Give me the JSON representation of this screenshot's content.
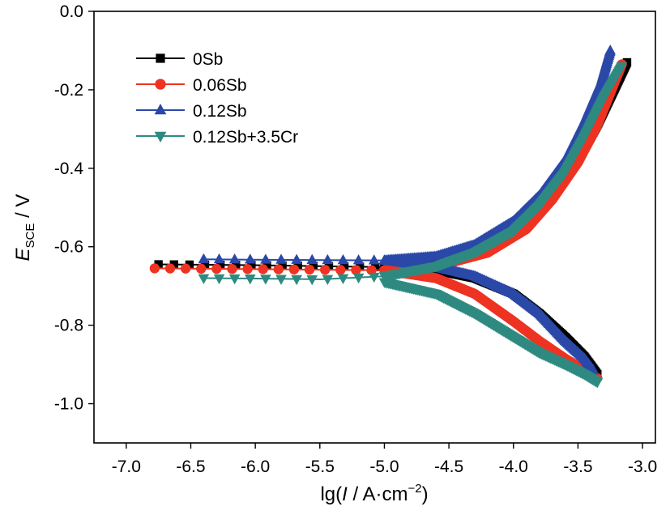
{
  "chart_data": {
    "type": "line",
    "title": "",
    "xlabel": {
      "prefix": "lg(",
      "italic": "I",
      "mid": " / A·cm",
      "sup": "−2",
      "suffix": ")"
    },
    "ylabel": {
      "italic": "E",
      "sub": "SCE",
      "suffix": " / V"
    },
    "xlim": [
      -7.25,
      -2.9
    ],
    "ylim": [
      -1.1,
      0.0
    ],
    "xticks": [
      -7.0,
      -6.5,
      -6.0,
      -5.5,
      -5.0,
      -4.5,
      -4.0,
      -3.5,
      -3.0
    ],
    "xtick_labels": [
      "-7.0",
      "-6.5",
      "-6.0",
      "-5.5",
      "-5.0",
      "-4.5",
      "-4.0",
      "-3.5",
      "-3.0"
    ],
    "yticks": [
      0.0,
      -0.2,
      -0.4,
      -0.6,
      -0.8,
      -1.0
    ],
    "ytick_labels": [
      "0.0",
      "-0.2",
      "-0.4",
      "-0.6",
      "-0.8",
      "-1.0"
    ],
    "grid": false,
    "legend_position": "top-left",
    "series": [
      {
        "name": "0Sb",
        "color": "#000000",
        "marker": "square",
        "ecorr": -0.65,
        "anodic": [
          [
            -6.75,
            -0.645
          ],
          [
            -6.0,
            -0.647
          ],
          [
            -5.0,
            -0.652
          ],
          [
            -4.6,
            -0.64
          ],
          [
            -4.2,
            -0.6
          ],
          [
            -3.9,
            -0.54
          ],
          [
            -3.7,
            -0.47
          ],
          [
            -3.5,
            -0.38
          ],
          [
            -3.35,
            -0.29
          ],
          [
            -3.22,
            -0.2
          ],
          [
            -3.12,
            -0.13
          ]
        ],
        "cathodic": [
          [
            -5.0,
            -0.652
          ],
          [
            -4.6,
            -0.66
          ],
          [
            -4.3,
            -0.68
          ],
          [
            -4.0,
            -0.72
          ],
          [
            -3.8,
            -0.77
          ],
          [
            -3.6,
            -0.83
          ],
          [
            -3.45,
            -0.88
          ],
          [
            -3.35,
            -0.925
          ]
        ]
      },
      {
        "name": "0.06Sb",
        "color": "#ee3322",
        "marker": "circle",
        "ecorr": -0.66,
        "anodic": [
          [
            -6.78,
            -0.655
          ],
          [
            -6.0,
            -0.657
          ],
          [
            -5.0,
            -0.66
          ],
          [
            -4.6,
            -0.65
          ],
          [
            -4.2,
            -0.615
          ],
          [
            -3.9,
            -0.555
          ],
          [
            -3.7,
            -0.48
          ],
          [
            -3.5,
            -0.385
          ],
          [
            -3.35,
            -0.29
          ],
          [
            -3.24,
            -0.2
          ],
          [
            -3.16,
            -0.135
          ]
        ],
        "cathodic": [
          [
            -5.0,
            -0.66
          ],
          [
            -4.6,
            -0.68
          ],
          [
            -4.3,
            -0.72
          ],
          [
            -4.0,
            -0.79
          ],
          [
            -3.8,
            -0.84
          ],
          [
            -3.6,
            -0.885
          ],
          [
            -3.45,
            -0.915
          ],
          [
            -3.35,
            -0.935
          ]
        ]
      },
      {
        "name": "0.12Sb",
        "color": "#2a48a8",
        "marker": "triangle-up",
        "ecorr": -0.635,
        "anodic": [
          [
            -6.4,
            -0.632
          ],
          [
            -6.0,
            -0.633
          ],
          [
            -5.0,
            -0.635
          ],
          [
            -4.6,
            -0.625
          ],
          [
            -4.3,
            -0.595
          ],
          [
            -4.0,
            -0.535
          ],
          [
            -3.8,
            -0.47
          ],
          [
            -3.6,
            -0.38
          ],
          [
            -3.45,
            -0.28
          ],
          [
            -3.32,
            -0.18
          ],
          [
            -3.25,
            -0.1
          ]
        ],
        "cathodic": [
          [
            -5.0,
            -0.635
          ],
          [
            -4.6,
            -0.652
          ],
          [
            -4.3,
            -0.675
          ],
          [
            -4.0,
            -0.72
          ],
          [
            -3.8,
            -0.77
          ],
          [
            -3.6,
            -0.84
          ],
          [
            -3.45,
            -0.885
          ],
          [
            -3.38,
            -0.915
          ]
        ]
      },
      {
        "name": "0.12Sb+3.5Cr",
        "color": "#2e8a80",
        "marker": "triangle-down",
        "ecorr": -0.68,
        "anodic": [
          [
            -6.4,
            -0.68
          ],
          [
            -6.0,
            -0.681
          ],
          [
            -5.5,
            -0.683
          ],
          [
            -5.0,
            -0.675
          ],
          [
            -4.6,
            -0.65
          ],
          [
            -4.3,
            -0.615
          ],
          [
            -4.0,
            -0.56
          ],
          [
            -3.8,
            -0.495
          ],
          [
            -3.6,
            -0.41
          ],
          [
            -3.45,
            -0.32
          ],
          [
            -3.3,
            -0.22
          ],
          [
            -3.16,
            -0.14
          ]
        ],
        "cathodic": [
          [
            -5.0,
            -0.69
          ],
          [
            -4.6,
            -0.72
          ],
          [
            -4.3,
            -0.77
          ],
          [
            -4.0,
            -0.83
          ],
          [
            -3.8,
            -0.87
          ],
          [
            -3.6,
            -0.9
          ],
          [
            -3.45,
            -0.925
          ],
          [
            -3.35,
            -0.945
          ]
        ]
      }
    ]
  }
}
